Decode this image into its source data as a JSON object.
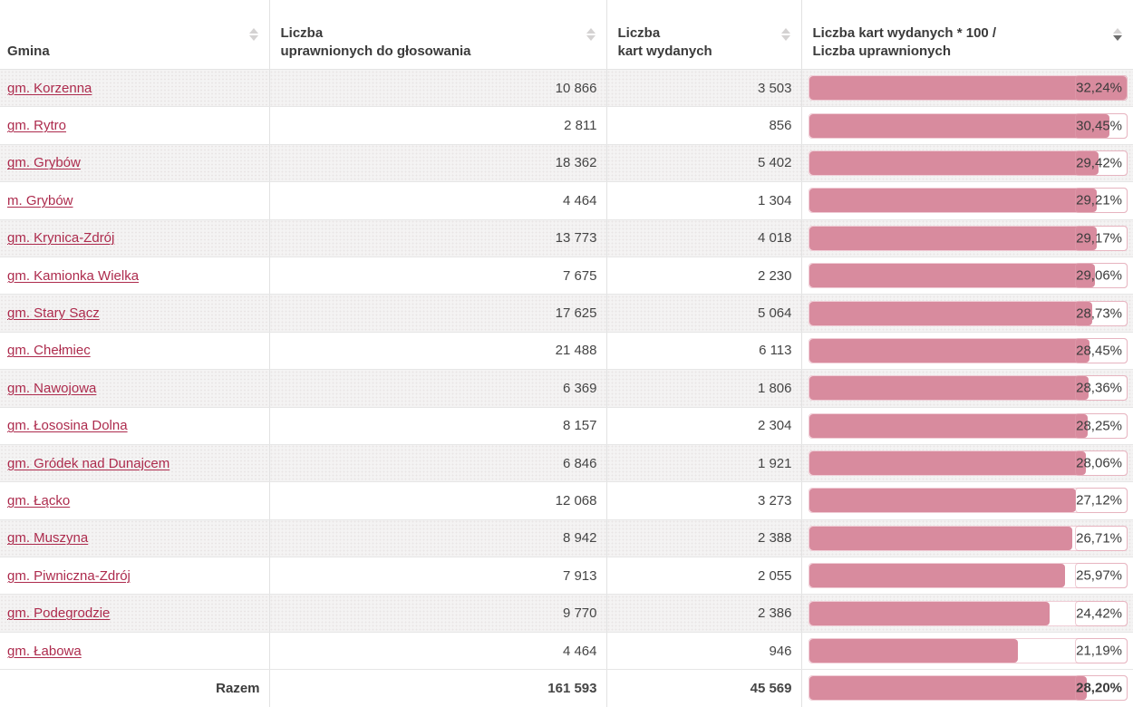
{
  "bar_scale_max": 32.24,
  "colors": {
    "bar_fill": "#d88b9e",
    "bar_track_border": "#f0cdd6",
    "link": "#ad2b4d",
    "stripe_background": "#f4f3f3",
    "text": "#3b3b3b"
  },
  "table": {
    "columns": [
      {
        "label": "Gmina",
        "sort": "none"
      },
      {
        "label": "Liczba\nuprawnionych do głosowania",
        "sort": "none"
      },
      {
        "label": "Liczba\nkart wydanych",
        "sort": "none"
      },
      {
        "label": "Liczba kart wydanych * 100 /\nLiczba uprawnionych",
        "sort": "desc"
      }
    ],
    "rows": [
      {
        "gmina": "gm. Korzenna",
        "uprawnieni": "10 866",
        "karty": "3 503",
        "pct": "32,24%",
        "pct_value": 32.24
      },
      {
        "gmina": "gm. Rytro",
        "uprawnieni": "2 811",
        "karty": "856",
        "pct": "30,45%",
        "pct_value": 30.45
      },
      {
        "gmina": "gm. Grybów",
        "uprawnieni": "18 362",
        "karty": "5 402",
        "pct": "29,42%",
        "pct_value": 29.42
      },
      {
        "gmina": "m. Grybów",
        "uprawnieni": "4 464",
        "karty": "1 304",
        "pct": "29,21%",
        "pct_value": 29.21
      },
      {
        "gmina": "gm. Krynica-Zdrój",
        "uprawnieni": "13 773",
        "karty": "4 018",
        "pct": "29,17%",
        "pct_value": 29.17
      },
      {
        "gmina": "gm. Kamionka Wielka",
        "uprawnieni": "7 675",
        "karty": "2 230",
        "pct": "29,06%",
        "pct_value": 29.06
      },
      {
        "gmina": "gm. Stary Sącz",
        "uprawnieni": "17 625",
        "karty": "5 064",
        "pct": "28,73%",
        "pct_value": 28.73
      },
      {
        "gmina": "gm. Chełmiec",
        "uprawnieni": "21 488",
        "karty": "6 113",
        "pct": "28,45%",
        "pct_value": 28.45
      },
      {
        "gmina": "gm. Nawojowa",
        "uprawnieni": "6 369",
        "karty": "1 806",
        "pct": "28,36%",
        "pct_value": 28.36
      },
      {
        "gmina": "gm. Łososina Dolna",
        "uprawnieni": "8 157",
        "karty": "2 304",
        "pct": "28,25%",
        "pct_value": 28.25
      },
      {
        "gmina": "gm. Gródek nad Dunajcem",
        "uprawnieni": "6 846",
        "karty": "1 921",
        "pct": "28,06%",
        "pct_value": 28.06
      },
      {
        "gmina": "gm. Łącko",
        "uprawnieni": "12 068",
        "karty": "3 273",
        "pct": "27,12%",
        "pct_value": 27.12
      },
      {
        "gmina": "gm. Muszyna",
        "uprawnieni": "8 942",
        "karty": "2 388",
        "pct": "26,71%",
        "pct_value": 26.71
      },
      {
        "gmina": "gm. Piwniczna-Zdrój",
        "uprawnieni": "7 913",
        "karty": "2 055",
        "pct": "25,97%",
        "pct_value": 25.97
      },
      {
        "gmina": "gm. Podegrodzie",
        "uprawnieni": "9 770",
        "karty": "2 386",
        "pct": "24,42%",
        "pct_value": 24.42
      },
      {
        "gmina": "gm. Łabowa",
        "uprawnieni": "4 464",
        "karty": "946",
        "pct": "21,19%",
        "pct_value": 21.19
      }
    ],
    "total": {
      "label": "Razem",
      "uprawnieni": "161 593",
      "karty": "45 569",
      "pct": "28,20%",
      "pct_value": 28.2
    }
  },
  "chart_data": {
    "type": "bar",
    "orientation": "horizontal",
    "categories": [
      "gm. Korzenna",
      "gm. Rytro",
      "gm. Grybów",
      "m. Grybów",
      "gm. Krynica-Zdrój",
      "gm. Kamionka Wielka",
      "gm. Stary Sącz",
      "gm. Chełmiec",
      "gm. Nawojowa",
      "gm. Łososina Dolna",
      "gm. Gródek nad Dunajcem",
      "gm. Łącko",
      "gm. Muszyna",
      "gm. Piwniczna-Zdrój",
      "gm. Podegrodzie",
      "gm. Łabowa"
    ],
    "values": [
      32.24,
      30.45,
      29.42,
      29.21,
      29.17,
      29.06,
      28.73,
      28.45,
      28.36,
      28.25,
      28.06,
      27.12,
      26.71,
      25.97,
      24.42,
      21.19
    ],
    "title": "Liczba kart wydanych * 100 / Liczba uprawnionych",
    "xlabel": "",
    "ylabel": "",
    "xlim": [
      0,
      32.24
    ],
    "total_value": 28.2,
    "legend": "none",
    "grid": false
  }
}
